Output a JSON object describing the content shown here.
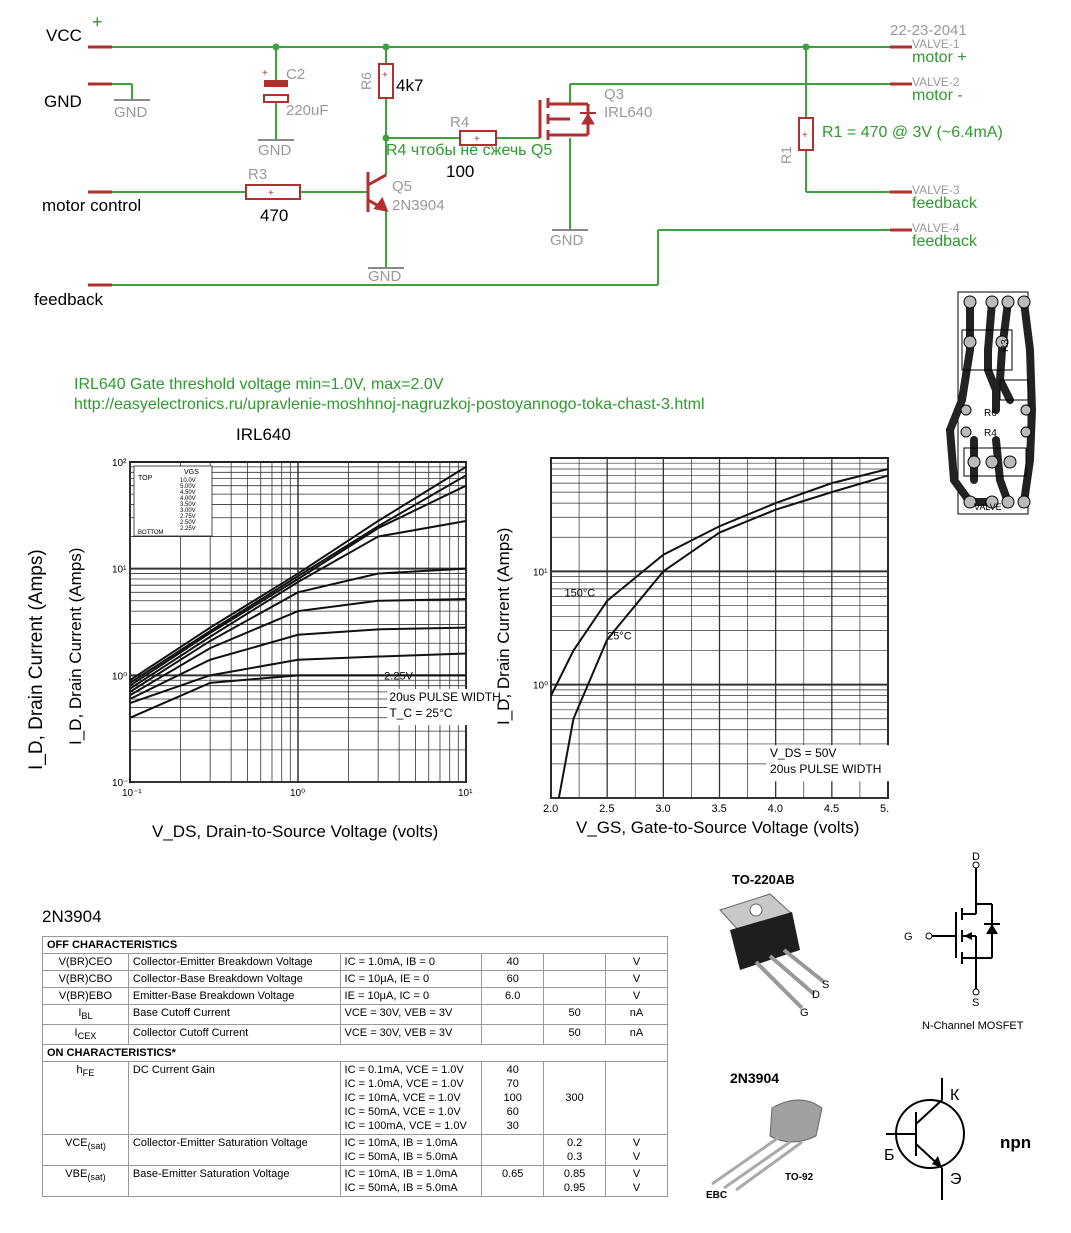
{
  "schematic": {
    "nets": {
      "vcc": "VCC",
      "gnd": "GND",
      "motor_control": "motor control",
      "feedback": "feedback",
      "vcc_plus": "+"
    },
    "date_label": "22-23-2041",
    "gnd_symbol": "GND",
    "components": {
      "c2_name": "C2",
      "c2_value": "220uF",
      "r6_name": "R6",
      "r6_value": "4k7",
      "r4_name": "R4",
      "r4_value": "100",
      "r4_note": "R4 чтобы не сжечь Q5",
      "r3_name": "R3",
      "r3_value": "470",
      "q5_name": "Q5",
      "q5_part": "2N3904",
      "q3_name": "Q3",
      "q3_part": "IRL640",
      "r1_name": "R1",
      "r1_note": "R1 = 470 @ 3V (~6.4mA)"
    },
    "connector": [
      {
        "pin": "VALVE-1",
        "label": "motor +"
      },
      {
        "pin": "VALVE-2",
        "label": "motor -"
      },
      {
        "pin": "VALVE-3",
        "label": "feedback"
      },
      {
        "pin": "VALVE-4",
        "label": "feedback"
      }
    ]
  },
  "notes": {
    "threshold": "IRL640 Gate threshold voltage min=1.0V, max=2.0V",
    "url": "http://easyelectronics.ru/upravlenie-moshhnoj-nagruzkoj-postoyannogo-toka-chast-3.html"
  },
  "pcb": {
    "labels": [
      "R3",
      "R6",
      "R4",
      "VALVE"
    ]
  },
  "charts": {
    "title": "IRL640",
    "output": {
      "ylabel_outer": "I_D, Drain Current (Amps)",
      "ylabel_inner": "I_D, Drain Current (Amps)",
      "xlabel": "V_DS, Drain-to-Source Voltage (volts)",
      "ytick_labels": [
        "10²",
        "10¹",
        "10⁰",
        "10⁻¹"
      ],
      "xtick_labels": [
        "10⁻¹",
        "10⁰",
        "10¹"
      ],
      "legend_header": [
        "VGS",
        "TOP"
      ],
      "legend_rows": [
        "10.0V",
        "5.00V",
        "4.50V",
        "4.00V",
        "3.50V",
        "3.00V",
        "2.75V",
        "2.50V",
        "2.25V"
      ],
      "legend_bottom": "BOTTOM",
      "curve_label": "2.25V",
      "note1": "20us PULSE WIDTH",
      "note2": "T_C = 25°C"
    },
    "transfer": {
      "ylabel": "I_D, Drain Current (Amps)",
      "xlabel": "V_GS, Gate-to-Source Voltage (volts)",
      "ytick_labels": [
        "10¹",
        "10⁰"
      ],
      "xtick_labels": [
        "2.0",
        "2.5",
        "3.0",
        "3.5",
        "4.0",
        "4.5",
        "5."
      ],
      "label_150": "150°C",
      "label_25": "25°C",
      "note1": "V_DS = 50V",
      "note2": "20us PULSE WIDTH"
    }
  },
  "chart_data": [
    {
      "type": "line",
      "title": "IRL640",
      "xlabel": "VDS, Drain-to-Source Voltage (volts)",
      "ylabel": "ID, Drain Current (Amps)",
      "xscale": "log",
      "yscale": "log",
      "xlim": [
        0.1,
        10
      ],
      "ylim": [
        0.1,
        100
      ],
      "grid": true,
      "legend": "top-left",
      "series": [
        {
          "name": "10.0V",
          "x": [
            0.1,
            0.3,
            1,
            3,
            10
          ],
          "y": [
            0.9,
            2.8,
            9,
            28,
            90
          ]
        },
        {
          "name": "5.00V",
          "x": [
            0.1,
            0.3,
            1,
            3,
            10
          ],
          "y": [
            0.85,
            2.6,
            8.5,
            25,
            75
          ]
        },
        {
          "name": "4.50V",
          "x": [
            0.1,
            0.3,
            1,
            3,
            10
          ],
          "y": [
            0.8,
            2.5,
            8,
            24,
            60
          ]
        },
        {
          "name": "4.00V",
          "x": [
            0.1,
            0.3,
            1,
            3,
            10
          ],
          "y": [
            0.75,
            2.3,
            7.5,
            20,
            28
          ]
        },
        {
          "name": "3.50V",
          "x": [
            0.1,
            0.3,
            1,
            3,
            10
          ],
          "y": [
            0.7,
            2.1,
            6,
            9,
            10
          ]
        },
        {
          "name": "3.00V",
          "x": [
            0.1,
            0.3,
            1,
            3,
            10
          ],
          "y": [
            0.65,
            1.8,
            4,
            5,
            5.2
          ]
        },
        {
          "name": "2.75V",
          "x": [
            0.1,
            0.3,
            1,
            3,
            10
          ],
          "y": [
            0.6,
            1.4,
            2.4,
            2.7,
            2.8
          ]
        },
        {
          "name": "2.50V",
          "x": [
            0.1,
            0.3,
            1,
            3,
            10
          ],
          "y": [
            0.55,
            1.0,
            1.4,
            1.5,
            1.6
          ]
        },
        {
          "name": "2.25V",
          "x": [
            0.1,
            0.3,
            1,
            3,
            10
          ],
          "y": [
            0.4,
            0.85,
            1.0,
            1.0,
            1.0
          ]
        }
      ],
      "annotations": [
        "20us PULSE WIDTH",
        "TC = 25°C"
      ]
    },
    {
      "type": "line",
      "xlabel": "VGS, Gate-to-Source Voltage (volts)",
      "ylabel": "ID, Drain Current (Amps)",
      "yscale": "log",
      "xlim": [
        2.0,
        5.0
      ],
      "ylim": [
        0.1,
        100
      ],
      "grid": true,
      "series": [
        {
          "name": "150°C",
          "x": [
            2.0,
            2.2,
            2.5,
            3.0,
            3.5,
            4.0,
            4.5,
            5.0
          ],
          "y": [
            0.8,
            2.0,
            5.5,
            14,
            25,
            40,
            60,
            80
          ]
        },
        {
          "name": "25°C",
          "x": [
            2.07,
            2.2,
            2.5,
            3.0,
            3.5,
            4.0,
            4.5,
            5.0
          ],
          "y": [
            0.1,
            0.5,
            2.5,
            10,
            22,
            35,
            50,
            70
          ]
        }
      ],
      "annotations": [
        "VDS = 50V",
        "20us PULSE WIDTH"
      ]
    }
  ],
  "table": {
    "title": "2N3904",
    "sections": [
      {
        "heading": "OFF CHARACTERISTICS",
        "rows": [
          {
            "sym": "V(BR)CEO",
            "desc": "Collector-Emitter Breakdown Voltage",
            "cond": [
              "IC = 1.0mA, IB = 0"
            ],
            "min": [
              "40"
            ],
            "max": [
              ""
            ],
            "unit": [
              "V"
            ]
          },
          {
            "sym": "V(BR)CBO",
            "desc": "Collector-Base Breakdown Voltage",
            "cond": [
              "IC = 10μA, IE = 0"
            ],
            "min": [
              "60"
            ],
            "max": [
              ""
            ],
            "unit": [
              "V"
            ]
          },
          {
            "sym": "V(BR)EBO",
            "desc": "Emitter-Base Breakdown Voltage",
            "cond": [
              "IE = 10μA, IC = 0"
            ],
            "min": [
              "6.0"
            ],
            "max": [
              ""
            ],
            "unit": [
              "V"
            ]
          },
          {
            "sym": "IBL",
            "desc": "Base Cutoff Current",
            "cond": [
              "VCE = 30V, VEB = 3V"
            ],
            "min": [
              ""
            ],
            "max": [
              "50"
            ],
            "unit": [
              "nA"
            ]
          },
          {
            "sym": "ICEX",
            "desc": "Collector Cutoff Current",
            "cond": [
              "VCE = 30V, VEB = 3V"
            ],
            "min": [
              ""
            ],
            "max": [
              "50"
            ],
            "unit": [
              "nA"
            ]
          }
        ]
      },
      {
        "heading": "ON CHARACTERISTICS*",
        "rows": [
          {
            "sym": "hFE",
            "desc": "DC Current Gain",
            "cond": [
              "IC = 0.1mA, VCE = 1.0V",
              "IC = 1.0mA, VCE = 1.0V",
              "IC = 10mA, VCE = 1.0V",
              "IC = 50mA, VCE = 1.0V",
              "IC = 100mA, VCE = 1.0V"
            ],
            "min": [
              "40",
              "70",
              "100",
              "60",
              "30"
            ],
            "max": [
              "",
              "",
              "300",
              "",
              ""
            ],
            "unit": [
              "",
              "",
              "",
              "",
              ""
            ]
          },
          {
            "sym": "VCE(sat)",
            "desc": "Collector-Emitter Saturation Voltage",
            "cond": [
              "IC = 10mA, IB = 1.0mA",
              "IC = 50mA, IB = 5.0mA"
            ],
            "min": [
              "",
              ""
            ],
            "max": [
              "0.2",
              "0.3"
            ],
            "unit": [
              "V",
              "V"
            ]
          },
          {
            "sym": "VBE(sat)",
            "desc": "Base-Emitter Saturation Voltage",
            "cond": [
              "IC = 10mA, IB = 1.0mA",
              "IC = 50mA, IB = 5.0mA"
            ],
            "min": [
              "0.65",
              ""
            ],
            "max": [
              "0.85",
              "0.95"
            ],
            "unit": [
              "V",
              "V"
            ]
          }
        ]
      }
    ]
  },
  "packages": {
    "to220_title": "TO-220AB",
    "to220_pins": [
      "G",
      "D",
      "S"
    ],
    "mosfet_pins": [
      "D",
      "G",
      "S"
    ],
    "mosfet_caption": "N-Channel MOSFET",
    "to92_title": "2N3904",
    "to92_caption": "TO-92",
    "to92_pins": "EBC",
    "bjt_pins": [
      "К",
      "Б",
      "Э"
    ],
    "bjt_type": "npn"
  },
  "colors": {
    "wire": "#3ca23c",
    "component": "#b03030",
    "label_gray": "#999999",
    "label_green": "#2e9a2e"
  }
}
